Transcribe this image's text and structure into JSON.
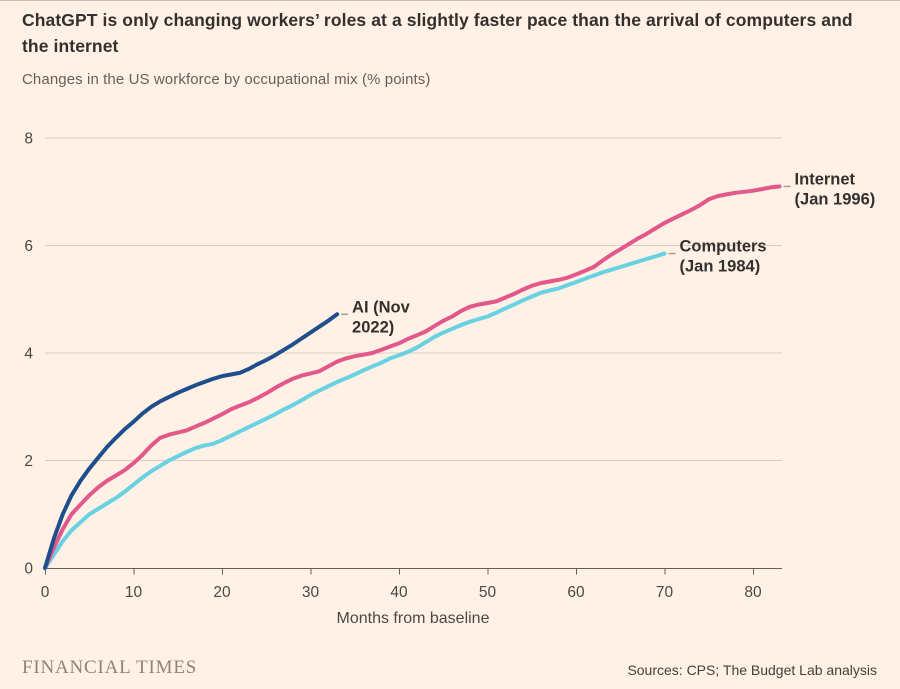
{
  "page": {
    "title_line1": "ChatGPT is only changing workers’ roles at a slightly faster pace than the arrival of computers and",
    "title_line2": "the internet",
    "subtitle": "Changes in the US workforce by occupational mix (% points)",
    "footer": {
      "brand": "FINANCIAL TIMES",
      "sources": "Sources: CPS; The Budget Lab analysis"
    }
  },
  "colors": {
    "background": "#fff1e5",
    "title_text": "#33302e",
    "muted_text": "#66605c",
    "tick_text": "#4d4845",
    "gridline": "#d8cec3",
    "axis": "#66605c",
    "connector": "#a69d92",
    "ai_blue": "#1e4e8c",
    "internet_pink": "#e2588a",
    "computers_cyan": "#68d1e2"
  },
  "chart_data": {
    "type": "line",
    "title": "ChatGPT is only changing workers’ roles at a slightly faster pace than the arrival of computers and the internet",
    "subtitle": "Changes in the US workforce by occupational mix (% points)",
    "xlabel": "Months from baseline",
    "ylabel": "% points",
    "xlim": [
      0,
      83.5
    ],
    "ylim": [
      0,
      8
    ],
    "x_ticks": [
      0,
      10,
      20,
      30,
      40,
      50,
      60,
      70,
      80
    ],
    "y_ticks": [
      0,
      2,
      4,
      6,
      8
    ],
    "grid": "horizontal",
    "legend_position": "end-of-line-labels",
    "series": [
      {
        "name": "Computers (Jan 1984)",
        "label_lines": [
          "Computers",
          "(Jan 1984)"
        ],
        "color": "#68d1e2",
        "x_start": 0,
        "x_step": 1,
        "values": [
          0,
          0.25,
          0.5,
          0.7,
          0.85,
          1.0,
          1.1,
          1.2,
          1.3,
          1.42,
          1.55,
          1.68,
          1.8,
          1.9,
          2.0,
          2.08,
          2.16,
          2.23,
          2.28,
          2.31,
          2.38,
          2.46,
          2.54,
          2.62,
          2.7,
          2.78,
          2.86,
          2.95,
          3.03,
          3.12,
          3.22,
          3.3,
          3.38,
          3.46,
          3.53,
          3.6,
          3.68,
          3.75,
          3.82,
          3.9,
          3.96,
          4.02,
          4.1,
          4.2,
          4.3,
          4.38,
          4.45,
          4.52,
          4.58,
          4.63,
          4.68,
          4.75,
          4.83,
          4.9,
          4.98,
          5.05,
          5.12,
          5.16,
          5.2,
          5.26,
          5.32,
          5.38,
          5.44,
          5.5,
          5.55,
          5.6,
          5.65,
          5.7,
          5.75,
          5.8,
          5.85
        ]
      },
      {
        "name": "Internet (Jan 1996)",
        "label_lines": [
          "Internet",
          "(Jan 1996)"
        ],
        "color": "#e2588a",
        "x_start": 0,
        "x_step": 1,
        "values": [
          0,
          0.38,
          0.72,
          1.0,
          1.18,
          1.35,
          1.5,
          1.62,
          1.72,
          1.82,
          1.95,
          2.1,
          2.28,
          2.42,
          2.48,
          2.52,
          2.56,
          2.63,
          2.7,
          2.78,
          2.86,
          2.95,
          3.02,
          3.08,
          3.16,
          3.25,
          3.35,
          3.44,
          3.52,
          3.58,
          3.62,
          3.66,
          3.75,
          3.84,
          3.9,
          3.94,
          3.97,
          4.0,
          4.06,
          4.12,
          4.18,
          4.26,
          4.33,
          4.4,
          4.5,
          4.6,
          4.68,
          4.78,
          4.86,
          4.9,
          4.93,
          4.96,
          5.03,
          5.1,
          5.18,
          5.25,
          5.3,
          5.33,
          5.36,
          5.4,
          5.46,
          5.53,
          5.6,
          5.72,
          5.83,
          5.93,
          6.03,
          6.13,
          6.22,
          6.32,
          6.42,
          6.5,
          6.58,
          6.66,
          6.75,
          6.86,
          6.92,
          6.95,
          6.98,
          7.0,
          7.02,
          7.05,
          7.08,
          7.1
        ]
      },
      {
        "name": "AI (Nov 2022)",
        "label_lines": [
          "AI (Nov",
          "2022)"
        ],
        "color": "#1e4e8c",
        "x_start": 0,
        "x_step": 1,
        "values": [
          0,
          0.55,
          1.0,
          1.35,
          1.62,
          1.85,
          2.05,
          2.25,
          2.42,
          2.58,
          2.72,
          2.87,
          3.0,
          3.1,
          3.18,
          3.26,
          3.33,
          3.4,
          3.46,
          3.52,
          3.57,
          3.6,
          3.63,
          3.7,
          3.79,
          3.87,
          3.96,
          4.06,
          4.16,
          4.27,
          4.38,
          4.49,
          4.6,
          4.72
        ]
      }
    ]
  }
}
